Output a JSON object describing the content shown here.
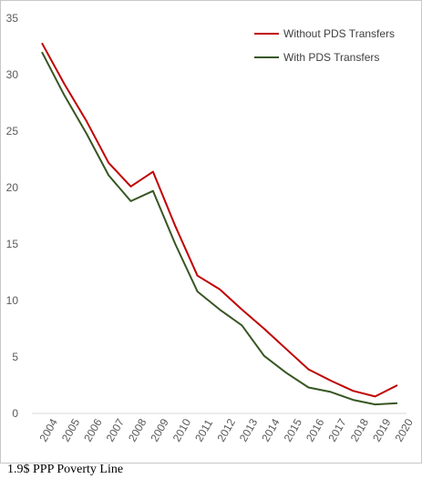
{
  "chart_data": {
    "type": "line",
    "x": [
      "2004",
      "2005",
      "2006",
      "2007",
      "2008",
      "2009",
      "2010",
      "2011",
      "2012",
      "2013",
      "2014",
      "2015",
      "2016",
      "2017",
      "2018",
      "2019",
      "2020"
    ],
    "series": [
      {
        "name": "Without PDS Transfers",
        "color": "#c00000",
        "values": [
          32.8,
          29.2,
          25.9,
          22.2,
          20.1,
          21.4,
          16.6,
          12.2,
          11.0,
          9.2,
          7.5,
          5.7,
          3.9,
          2.9,
          2.0,
          1.5,
          2.5
        ]
      },
      {
        "name": "With PDS Transfers",
        "color": "#375623",
        "values": [
          32.0,
          28.2,
          24.8,
          21.1,
          18.8,
          19.7,
          15.0,
          10.8,
          9.2,
          7.8,
          5.1,
          3.6,
          2.3,
          1.9,
          1.2,
          0.8,
          0.9
        ]
      }
    ],
    "y_ticks": [
      "0",
      "5",
      "10",
      "15",
      "20",
      "25",
      "30",
      "35"
    ],
    "ylim": [
      0,
      35
    ],
    "grid": false,
    "legend_position": "top-right"
  },
  "caption": "1.9$ PPP Poverty Line"
}
